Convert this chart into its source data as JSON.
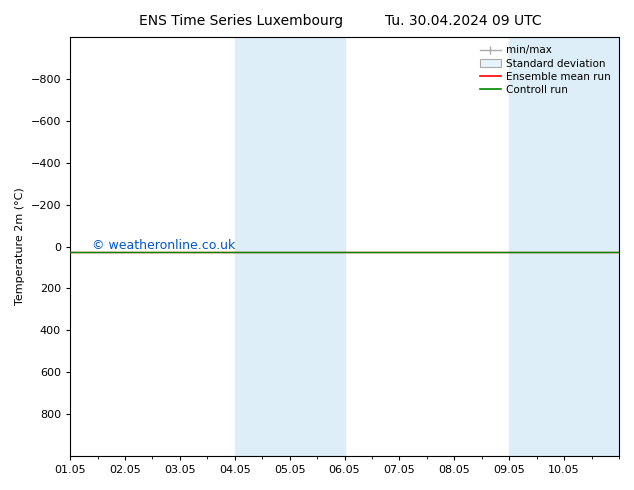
{
  "title_left": "ENS Time Series Luxembourg",
  "title_right": "Tu. 30.04.2024 09 UTC",
  "ylabel": "Temperature 2m (°C)",
  "watermark": "© weatheronline.co.uk",
  "xlim_start": 0,
  "xlim_end": 10,
  "ylim_top": -1000,
  "ylim_bottom": 1000,
  "yticks": [
    -800,
    -600,
    -400,
    -200,
    0,
    200,
    400,
    600,
    800
  ],
  "xtick_labels": [
    "01.05",
    "02.05",
    "03.05",
    "04.05",
    "05.05",
    "06.05",
    "07.05",
    "08.05",
    "09.05",
    "10.05"
  ],
  "shade_regions": [
    [
      3,
      4
    ],
    [
      4,
      5
    ],
    [
      8,
      9
    ],
    [
      9,
      10
    ]
  ],
  "shade_color": "#ddeef8",
  "control_run_y": 25,
  "ensemble_mean_y": 25,
  "control_run_color": "#008800",
  "ensemble_mean_color": "#ff0000",
  "minmax_color": "#aaaaaa",
  "stddev_color": "#cccccc",
  "background_color": "#ffffff",
  "title_fontsize": 10,
  "axis_fontsize": 8,
  "tick_fontsize": 8,
  "watermark_color": "#0055cc",
  "watermark_fontsize": 9,
  "legend_fontsize": 7.5
}
